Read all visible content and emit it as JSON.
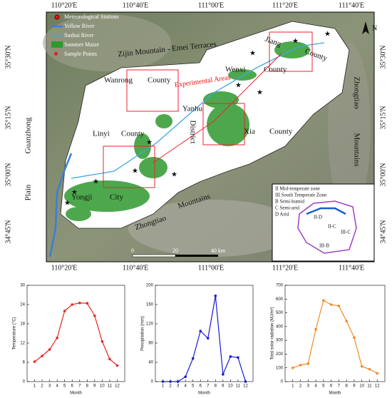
{
  "map": {
    "lon_labels": [
      "110°20'E",
      "110°40'E",
      "111°00'E",
      "111°20'E",
      "111°40'E"
    ],
    "lat_labels": [
      "35°30'N",
      "35°15'N",
      "35°00'N",
      "34°45'N"
    ],
    "places": {
      "zijin": "Zijin Mountain - Emei Terraces",
      "jiang": "Jiang",
      "jiang_county": "County",
      "wenxi": "Wenxi",
      "wenxi_county": "County",
      "wanrong": "Wanrong",
      "wanrong_county": "County",
      "experimental": "Experimental Areas",
      "yanhu": "Yanhu",
      "yanhu_district": "District",
      "xia": "Xia",
      "xia_county": "County",
      "linyi": "Linyi",
      "linyi_county": "County",
      "yongji": "Yongji",
      "yongji_city": "City",
      "guanzhong": "Guanzhong",
      "plain": "Plain",
      "zhongtiao_bottom": "Zhongtiao",
      "mountains_bottom": "Mountains",
      "zhongtiao_right": "Zhongtiao",
      "mountains_right": "Mountains",
      "north": "N"
    },
    "legend": [
      "Meteorological Stations",
      "Yellow River",
      "Sushui River",
      "Summer Maize",
      "Sample Points"
    ],
    "scale": [
      "0",
      "20",
      "40 km"
    ],
    "inset": {
      "legend": [
        "II   Mid-temperate zone",
        "III  South Temperate Zone",
        "B   Semi-humid",
        "C   Semi-arid",
        "D   Arid"
      ],
      "zones": [
        "II-D",
        "II-C",
        "III-C",
        "III-B"
      ]
    }
  },
  "chart_data": [
    {
      "type": "line",
      "ylabel": "Temperature (°C)",
      "xlabel": "Month",
      "color": "#e8261f",
      "x": [
        1,
        2,
        3,
        4,
        5,
        6,
        7,
        8,
        9,
        10,
        11,
        12
      ],
      "values": [
        6.2,
        8,
        10,
        13.6,
        22,
        24,
        24.5,
        24.4,
        20.5,
        12.5,
        7,
        5
      ],
      "xlim": [
        0,
        13
      ],
      "xticks": [
        1,
        2,
        3,
        4,
        5,
        6,
        7,
        8,
        9,
        10,
        11,
        12
      ],
      "ylim": [
        0,
        30
      ],
      "yticks": [
        0,
        6,
        12,
        18,
        24,
        30
      ]
    },
    {
      "type": "line",
      "ylabel": "Precipitation (mm)",
      "xlabel": "Month",
      "color": "#1a1ad6",
      "x": [
        1,
        2,
        3,
        4,
        5,
        6,
        7,
        8,
        9,
        10,
        11,
        12
      ],
      "values": [
        0,
        0,
        0,
        10,
        48,
        105,
        90,
        178,
        15,
        52,
        50,
        0
      ],
      "xlim": [
        0,
        13
      ],
      "xticks": [
        1,
        2,
        3,
        4,
        5,
        6,
        7,
        8,
        9,
        10,
        11,
        12
      ],
      "ylim": [
        0,
        200
      ],
      "yticks": [
        0,
        40,
        80,
        120,
        160,
        200
      ]
    },
    {
      "type": "line",
      "ylabel": "Total solar radiation (MJ/m²)",
      "xlabel": "Month",
      "color": "#f08a2a",
      "x": [
        1,
        2,
        3,
        4,
        5,
        6,
        7,
        8,
        9,
        10,
        11,
        12
      ],
      "values": [
        100,
        120,
        130,
        380,
        590,
        560,
        550,
        440,
        320,
        110,
        90,
        60
      ],
      "xlim": [
        0,
        13
      ],
      "xticks": [
        1,
        2,
        3,
        4,
        5,
        6,
        7,
        8,
        9,
        10,
        11,
        12
      ],
      "ylim": [
        0,
        700
      ],
      "yticks": [
        0,
        100,
        200,
        300,
        400,
        500,
        600,
        700
      ]
    }
  ]
}
